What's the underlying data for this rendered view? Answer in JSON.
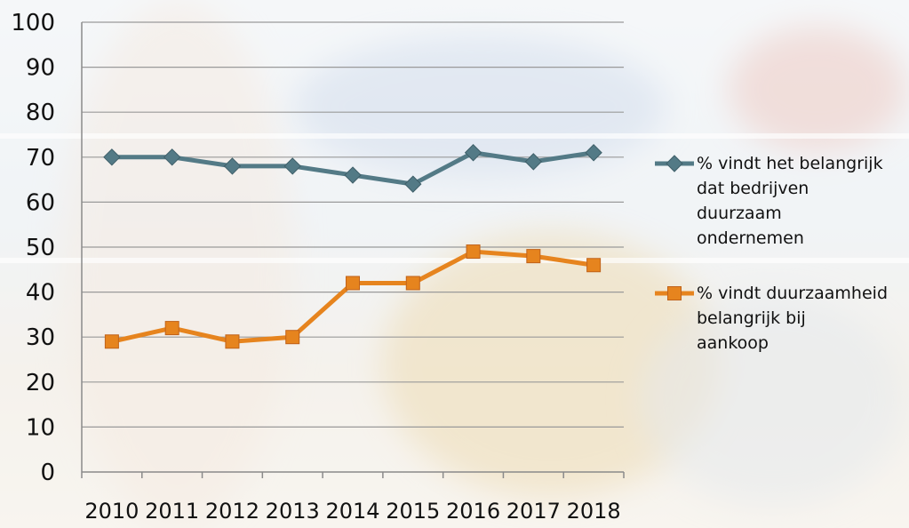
{
  "chart_data": {
    "type": "line",
    "categories": [
      "2010",
      "2011",
      "2012",
      "2013",
      "2014",
      "2015",
      "2016",
      "2017",
      "2018"
    ],
    "ylim": [
      0,
      100
    ],
    "yticks": [
      "0",
      "10",
      "20",
      "30",
      "40",
      "50",
      "60",
      "70",
      "80",
      "90",
      "100"
    ],
    "grid": true,
    "legend_position": "right",
    "series": [
      {
        "name": "% vindt het belangrijk dat bedrijven duurzaam ondernemen",
        "name_lines": [
          "% vindt het belangrijk",
          "dat bedrijven",
          "duurzaam",
          "ondernemen"
        ],
        "values": [
          70,
          70,
          68,
          68,
          66,
          64,
          71,
          69,
          71
        ],
        "color": "#537a86",
        "marker": "diamond"
      },
      {
        "name": "% vindt duurzaamheid belangrijk bij aankoop",
        "name_lines": [
          "% vindt duurzaamheid",
          "belangrijk bij",
          "aankoop"
        ],
        "values": [
          29,
          32,
          29,
          30,
          42,
          42,
          49,
          48,
          46
        ],
        "color": "#e6841e",
        "marker": "square"
      }
    ]
  }
}
